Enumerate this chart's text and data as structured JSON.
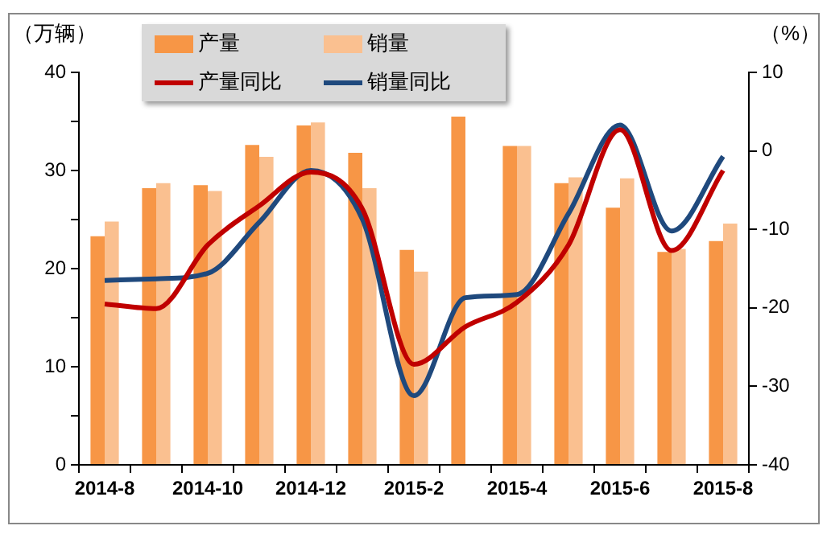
{
  "chart_data": {
    "type": "bar",
    "ylabel": "（万辆）",
    "y2label": "（%）",
    "categories": [
      "2014-8",
      null,
      "2014-10",
      null,
      "2014-12",
      null,
      "2015-2",
      null,
      "2015-4",
      null,
      "2015-6",
      null,
      "2015-8"
    ],
    "series": [
      {
        "name": "产量",
        "color": "#f79646",
        "values": [
          23.3,
          28.2,
          28.5,
          32.6,
          34.6,
          31.8,
          21.9,
          35.5,
          32.5,
          28.7,
          26.2,
          21.7,
          22.8
        ]
      },
      {
        "name": "销量",
        "color": "#fac090",
        "values": [
          24.8,
          28.7,
          27.9,
          31.4,
          34.9,
          28.2,
          19.7,
          null,
          32.5,
          29.3,
          29.2,
          22.0,
          24.6
        ]
      },
      {
        "name": "产量同比",
        "type": "line",
        "axis": "y2",
        "color": "#c00000",
        "values": [
          -19.5,
          -20.1,
          -12,
          -7,
          -2.7,
          -7.4,
          -27.2,
          -22.4,
          -19.3,
          -12,
          2.7,
          -12.7,
          -2.5
        ]
      },
      {
        "name": "销量同比",
        "type": "line",
        "axis": "y2",
        "color": "#1f497d",
        "values": [
          -16.5,
          -16.3,
          -15.6,
          -9.1,
          -2.5,
          -8.7,
          -31.2,
          -18.7,
          -18.3,
          -8,
          3.3,
          -10.2,
          -0.7
        ]
      }
    ],
    "ylim": [
      0,
      40
    ],
    "yticks": [
      0,
      {
        "value": 5,
        "label": null
      },
      10,
      {
        "value": 15,
        "label": null
      },
      20,
      {
        "value": 25,
        "label": null
      },
      30,
      {
        "value": 35,
        "label": null
      },
      40
    ],
    "y2lim": [
      -40,
      10
    ],
    "y2ticks": [
      -40,
      -30,
      -20,
      -10,
      0,
      10
    ],
    "grid": false,
    "legend": "top",
    "marker": "none"
  }
}
